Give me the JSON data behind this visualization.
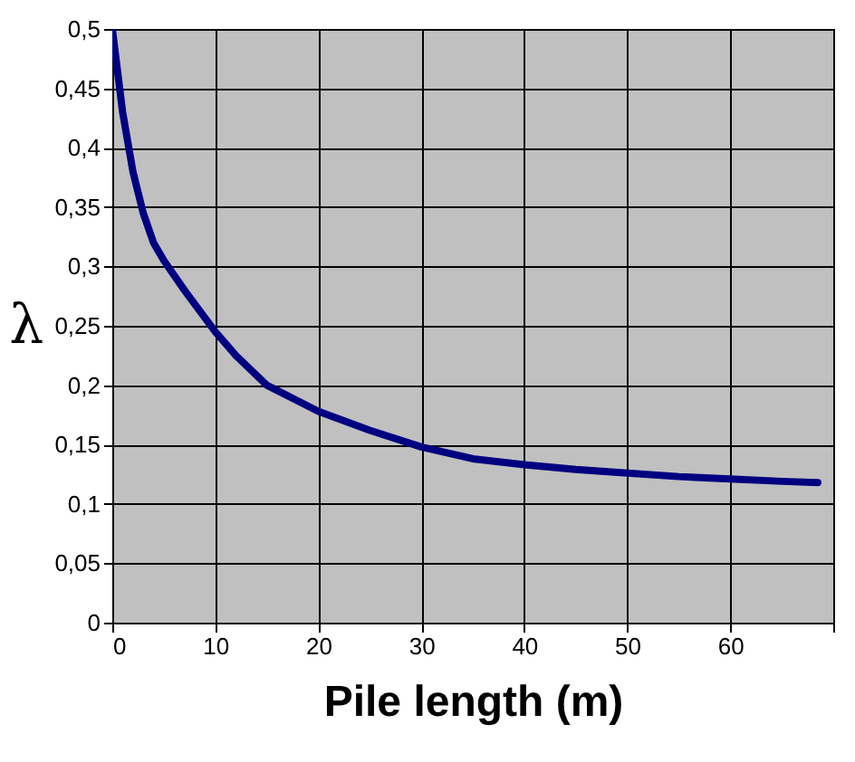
{
  "chart_data": {
    "type": "line",
    "xlabel": "Pile length (m)",
    "ylabel": "λ",
    "x": [
      0,
      1,
      2,
      3,
      4,
      5,
      7,
      10,
      12,
      15,
      20,
      25,
      30,
      35,
      40,
      45,
      50,
      55,
      60,
      65,
      68.5
    ],
    "series": [
      {
        "color": "#000080",
        "values": [
          0.5,
          0.43,
          0.38,
          0.345,
          0.32,
          0.305,
          0.28,
          0.245,
          0.225,
          0.2,
          0.178,
          0.162,
          0.148,
          0.138,
          0.133,
          0.129,
          0.126,
          0.123,
          0.121,
          0.119,
          0.118
        ]
      }
    ],
    "xlim": [
      0,
      70
    ],
    "ylim": [
      0,
      0.5
    ],
    "xticks": [
      0,
      10,
      20,
      30,
      40,
      50,
      60,
      {
        "value": 70,
        "label": null
      }
    ],
    "yticks": [
      0,
      {
        "value": 0.05,
        "label": "0,05"
      },
      {
        "value": 0.1,
        "label": "0,1"
      },
      {
        "value": 0.15,
        "label": "0,15"
      },
      {
        "value": 0.2,
        "label": "0,2"
      },
      {
        "value": 0.25,
        "label": "0,25"
      },
      {
        "value": 0.3,
        "label": "0,3"
      },
      {
        "value": 0.35,
        "label": "0,35"
      },
      {
        "value": 0.4,
        "label": "0,4"
      },
      {
        "value": 0.45,
        "label": "0,45"
      },
      {
        "value": 0.5,
        "label": "0,5"
      }
    ],
    "grid": true,
    "marker": "none",
    "line_style": "solid"
  }
}
